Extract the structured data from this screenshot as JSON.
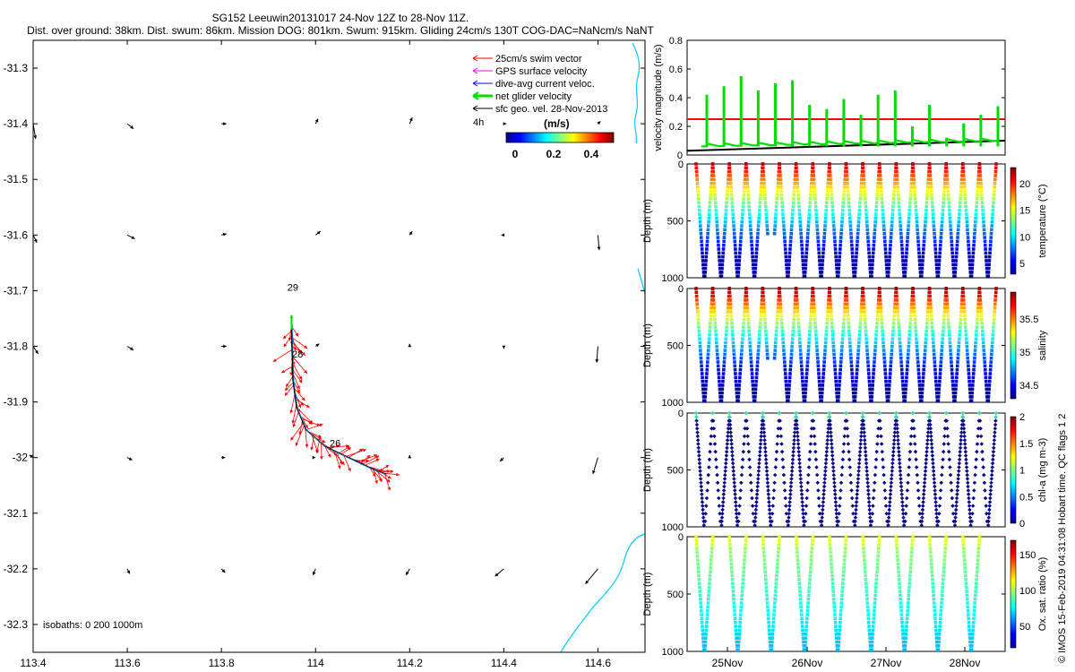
{
  "header": {
    "title_line1": "SG152 Leeuwin20131017 24-Nov 12Z to 28-Nov 11Z.",
    "title_line2": "Dist. over ground: 38km. Dist. swum: 86km. Mission DOG: 801km. Swum: 915km. Gliding 24cm/s 130T COG-DAC=NaNcm/s NaNT"
  },
  "copyright": "© IMOS 15-Feb-2019 04:31:08 Hobart time. QC flags 1  2",
  "colors": {
    "swim": "#ff0000",
    "gps": "#ff00ff",
    "dac": "#0000ff",
    "net": "#00dd00",
    "geo": "#000000",
    "coast": "#00ccff",
    "profile_text": "#000000"
  },
  "chart_data": [
    {
      "type": "map",
      "xlim": [
        113.4,
        114.7
      ],
      "ylim": [
        -32.35,
        -31.25
      ],
      "x_ticks": [
        "113.4",
        "113.6",
        "113.8",
        "114",
        "114.2",
        "114.4",
        "114.6"
      ],
      "y_ticks": [
        "-31.3",
        "-31.4",
        "-31.5",
        "-31.6",
        "-31.7",
        "-31.8",
        "-31.9",
        "-32",
        "-32.1",
        "-32.2",
        "-32.3"
      ],
      "legend": {
        "entries": [
          "25cm/s swim vector",
          "GPS surface velocity",
          "dive-avg current veloc.",
          "net glider velocity",
          "sfc geo. vel. 28-Nov-2013"
        ],
        "time_label": "4h",
        "colorbar_label": "(m/s)",
        "colorbar_ticks": [
          "0",
          "0.2",
          "0.4"
        ]
      },
      "annotations": [
        {
          "text": "29",
          "lon": 113.94,
          "lat": -31.7
        },
        {
          "text": "28",
          "lon": 113.95,
          "lat": -31.82
        },
        {
          "text": "26",
          "lon": 114.03,
          "lat": -31.98
        }
      ],
      "isobath_label": "isobaths: 0   200  1000m",
      "track": [
        [
          113.949,
          -31.76
        ],
        [
          113.95,
          -31.8
        ],
        [
          113.952,
          -31.86
        ],
        [
          113.96,
          -31.91
        ],
        [
          113.98,
          -31.95
        ],
        [
          114.02,
          -31.98
        ],
        [
          114.07,
          -32.0
        ],
        [
          114.12,
          -32.02
        ],
        [
          114.15,
          -32.03
        ]
      ],
      "geo_vectors": [
        {
          "lon": 113.4,
          "lat": -31.4,
          "u": 0.02,
          "v": -0.12
        },
        {
          "lon": 113.6,
          "lat": -31.4,
          "u": 0.05,
          "v": -0.04
        },
        {
          "lon": 113.8,
          "lat": -31.4,
          "u": 0.04,
          "v": 0.0
        },
        {
          "lon": 114.0,
          "lat": -31.4,
          "u": 0.02,
          "v": 0.04
        },
        {
          "lon": 114.2,
          "lat": -31.4,
          "u": 0.02,
          "v": 0.05
        },
        {
          "lon": 114.4,
          "lat": -31.4,
          "u": 0.02,
          "v": 0.0
        },
        {
          "lon": 114.6,
          "lat": -31.4,
          "u": 0.02,
          "v": 0.02
        },
        {
          "lon": 113.4,
          "lat": -31.6,
          "u": 0.03,
          "v": -0.06
        },
        {
          "lon": 113.6,
          "lat": -31.6,
          "u": 0.06,
          "v": -0.03
        },
        {
          "lon": 113.8,
          "lat": -31.6,
          "u": 0.04,
          "v": 0.01
        },
        {
          "lon": 114.0,
          "lat": -31.6,
          "u": 0.04,
          "v": 0.03
        },
        {
          "lon": 114.2,
          "lat": -31.6,
          "u": 0.02,
          "v": 0.03
        },
        {
          "lon": 114.4,
          "lat": -31.6,
          "u": -0.02,
          "v": 0.0
        },
        {
          "lon": 114.6,
          "lat": -31.6,
          "u": 0.01,
          "v": -0.12
        },
        {
          "lon": 113.4,
          "lat": -31.8,
          "u": 0.04,
          "v": -0.06
        },
        {
          "lon": 113.6,
          "lat": -31.8,
          "u": 0.05,
          "v": -0.03
        },
        {
          "lon": 113.8,
          "lat": -31.8,
          "u": 0.04,
          "v": 0.0
        },
        {
          "lon": 114.0,
          "lat": -31.8,
          "u": 0.03,
          "v": 0.02
        },
        {
          "lon": 114.2,
          "lat": -31.8,
          "u": 0.0,
          "v": 0.02
        },
        {
          "lon": 114.4,
          "lat": -31.8,
          "u": 0.0,
          "v": -0.02
        },
        {
          "lon": 114.6,
          "lat": -31.8,
          "u": -0.01,
          "v": -0.13
        },
        {
          "lon": 113.4,
          "lat": -32.0,
          "u": -0.03,
          "v": 0.02
        },
        {
          "lon": 113.6,
          "lat": -32.0,
          "u": 0.04,
          "v": -0.02
        },
        {
          "lon": 113.8,
          "lat": -32.0,
          "u": 0.03,
          "v": 0.0
        },
        {
          "lon": 114.0,
          "lat": -32.0,
          "u": 0.0,
          "v": 0.0
        },
        {
          "lon": 114.2,
          "lat": -32.0,
          "u": 0.0,
          "v": 0.02
        },
        {
          "lon": 114.4,
          "lat": -32.0,
          "u": -0.03,
          "v": -0.03
        },
        {
          "lon": 114.6,
          "lat": -32.0,
          "u": -0.04,
          "v": -0.13
        },
        {
          "lon": 113.6,
          "lat": -32.2,
          "u": 0.02,
          "v": -0.04
        },
        {
          "lon": 113.8,
          "lat": -32.2,
          "u": 0.03,
          "v": -0.03
        },
        {
          "lon": 114.0,
          "lat": -32.2,
          "u": -0.02,
          "v": -0.05
        },
        {
          "lon": 114.2,
          "lat": -32.2,
          "u": -0.03,
          "v": -0.05
        },
        {
          "lon": 114.4,
          "lat": -32.2,
          "u": -0.07,
          "v": -0.06
        },
        {
          "lon": 114.6,
          "lat": -32.2,
          "u": -0.1,
          "v": -0.12
        }
      ]
    },
    {
      "type": "line",
      "ylabel": "velocity magnitude (m/s)",
      "ylim": [
        0,
        0.8
      ],
      "y_ticks": [
        "0",
        "0.2",
        "0.4",
        "0.6",
        "0.8"
      ],
      "xlim_days": [
        24.5,
        28.5
      ],
      "swim_speed": 0.25,
      "dive_peaks": [
        0.42,
        0.48,
        0.55,
        0.45,
        0.5,
        0.52,
        0.35,
        0.32,
        0.39,
        0.28,
        0.42,
        0.45,
        0.2,
        0.35,
        0.12,
        0.22,
        0.28,
        0.34
      ]
    },
    {
      "type": "scatter",
      "ylabel": "Depth (m)",
      "colorbar_label": "temperature (°C)",
      "colorbar_ticks": [
        "5",
        "10",
        "15",
        "20"
      ],
      "y_ticks": [
        "0",
        "500",
        "1000"
      ],
      "vmin": 3,
      "vmax": 23,
      "surface_value": 22,
      "bottom_value": 3
    },
    {
      "type": "scatter",
      "ylabel": "Depth (m)",
      "colorbar_label": "salinity",
      "colorbar_ticks": [
        "34.5",
        "35",
        "35.5"
      ],
      "y_ticks": [
        "0",
        "500",
        "1000"
      ],
      "vmin": 34.3,
      "vmax": 35.9,
      "surface_value": 35.8,
      "bottom_value": 34.35
    },
    {
      "type": "scatter",
      "ylabel": "Depth (m)",
      "colorbar_label": "chl-a (mg m-3)",
      "colorbar_ticks": [
        "0",
        "0.5",
        "1",
        "1.5",
        "2"
      ],
      "y_ticks": [
        "0",
        "500",
        "1000"
      ],
      "vmin": 0,
      "vmax": 2
    },
    {
      "type": "scatter",
      "ylabel": "Depth (m)",
      "colorbar_label": "Ox. sat. ratio (%)",
      "colorbar_ticks": [
        "50",
        "100",
        "150"
      ],
      "y_ticks": [
        "0",
        "500",
        "1000"
      ],
      "vmin": 20,
      "vmax": 170,
      "x_ticks": [
        "25Nov",
        "26Nov",
        "27Nov",
        "28Nov"
      ]
    }
  ]
}
